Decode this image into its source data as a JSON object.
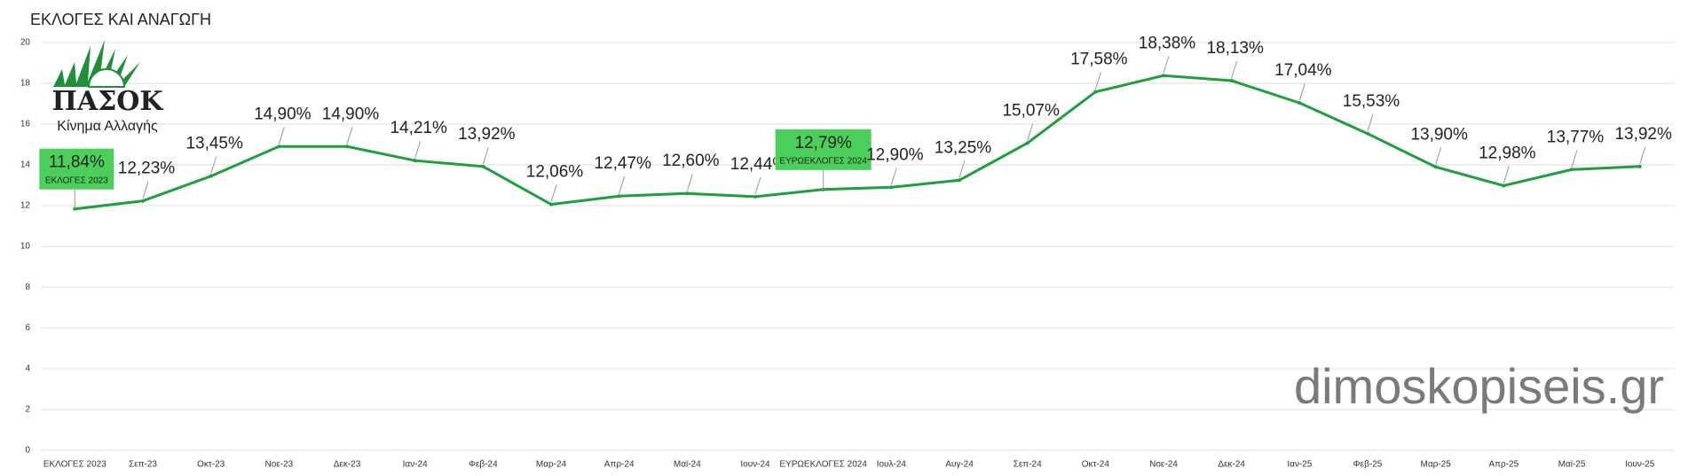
{
  "chart_data": {
    "type": "line",
    "title": "ΕΚΛΟΓΕΣ ΚΑΙ ΑΝΑΓΩΓΗ",
    "categories": [
      "ΕΚΛΟΓΕΣ 2023",
      "Σεπ-23",
      "Οκτ-23",
      "Νοε-23",
      "Δεκ-23",
      "Ιαν-24",
      "Φεβ-24",
      "Μαρ-24",
      "Απρ-24",
      "Μαϊ-24",
      "Ιουν-24",
      "ΕΥΡΩΕΚΛΟΓΕΣ 2024",
      "Ιουλ-24",
      "Αυγ-24",
      "Σεπ-24",
      "Οκτ-24",
      "Νοε-24",
      "Δεκ-24",
      "Ιαν-25",
      "Φεβ-25",
      "Μαρ-25",
      "Απρ-25",
      "Μαϊ-25",
      "Ιουν-25"
    ],
    "series": [
      {
        "name": "ΠΑΣΟΚ",
        "color": "#1f9e3c",
        "values": [
          11.84,
          12.23,
          13.45,
          14.9,
          14.9,
          14.21,
          13.92,
          12.06,
          12.47,
          12.6,
          12.44,
          12.79,
          12.9,
          13.25,
          15.07,
          17.58,
          18.38,
          18.13,
          17.04,
          15.53,
          13.9,
          12.98,
          13.77,
          13.92
        ],
        "value_labels": [
          "11,84%",
          "12,23%",
          "13,45%",
          "14,90%",
          "14,90%",
          "14,21%",
          "13,92%",
          "12,06%",
          "12,47%",
          "12,60%",
          "12,44%",
          "12,79%",
          "12,90%",
          "13,25%",
          "15,07%",
          "17,58%",
          "18,38%",
          "18,13%",
          "17,04%",
          "15,53%",
          "13,90%",
          "12,98%",
          "13,77%",
          "13,92%"
        ]
      }
    ],
    "annotations": [
      {
        "index": 0,
        "text": "ΕΚΛΟΓΕΣ 2023",
        "color": "#4ccf5a"
      },
      {
        "index": 11,
        "text": "ΕΥΡΩΕΚΛΟΓΕΣ 2024",
        "color": "#4ccf5a"
      }
    ],
    "ylim": [
      0,
      20
    ],
    "yticks": [
      0,
      2,
      4,
      6,
      8,
      10,
      12,
      14,
      16,
      18,
      20
    ],
    "grid": true,
    "logo": {
      "name": "ΠΑΣΟΚ",
      "slogan": "Κίνημα Αλλαγής"
    },
    "watermark": "dimoskopiseis.gr"
  }
}
